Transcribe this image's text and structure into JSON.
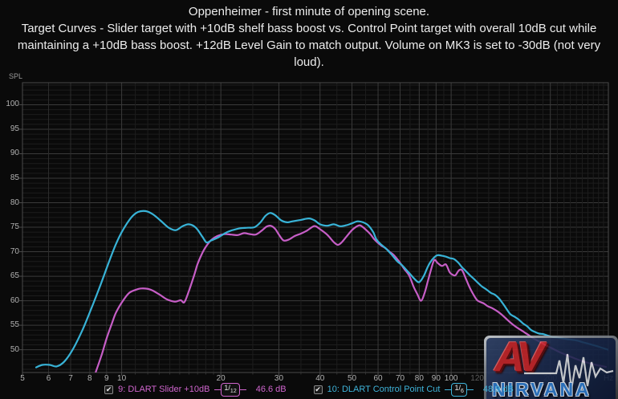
{
  "title": {
    "lines": [
      "Oppenheimer - first minute of opening scene.",
      "Target Curves - Slider target with +10dB shelf bass boost vs. Control Point target with overall 10dB cut while",
      "maintaining a +10dB bass boost. +12dB Level Gain to match output. Volume on MK3 is set to -30dB (not very",
      "loud)."
    ]
  },
  "axes": {
    "y_label": "SPL",
    "x_unit": "Hz",
    "y_ticks": [
      100,
      95,
      90,
      85,
      80,
      75,
      70,
      65,
      60,
      55,
      50
    ],
    "x_ticks": [
      5,
      6,
      7,
      8,
      9,
      10,
      20,
      30,
      40,
      50,
      60,
      70,
      80,
      90,
      100
    ],
    "x_ticks_dim": [
      120,
      200
    ]
  },
  "legend": [
    {
      "checked": true,
      "label": "9: DLART Slider +10dB",
      "smoothing": "1/12",
      "value": "46.6 dB",
      "color": "#cf65cd"
    },
    {
      "checked": true,
      "label": "10: DLART Control Point Cut",
      "smoothing": "1/6",
      "value": "48.9 dB",
      "color": "#3fb4da"
    }
  ],
  "watermark": {
    "av": "AV",
    "nirvana": "NIRVANA"
  },
  "colors": {
    "bg": "#0a0a0a",
    "grid_major": "#3a3a3a",
    "grid_medium": "#2c2c2c",
    "grid_minor": "#1d1d1d",
    "plot_border": "#4a4a4a",
    "tick_text": "#b2b2b2"
  },
  "chart_data": {
    "type": "line",
    "x_scale": "log",
    "xlabel": "Hz",
    "ylabel": "SPL (dB)",
    "x_range": [
      5,
      300
    ],
    "y_range": [
      45.35,
      104.5
    ],
    "grid": "on",
    "legend_position": "bottom",
    "x_major_gridlines": [
      10,
      20,
      30,
      40,
      50,
      60,
      70,
      80,
      90,
      100,
      200
    ],
    "x_medium_gridlines": [
      6,
      7,
      8,
      9
    ],
    "x_minor_gridlines": [
      11,
      12,
      13,
      14,
      15,
      16,
      17,
      18,
      19,
      25,
      35,
      45,
      55,
      65,
      75,
      85,
      95,
      110,
      120,
      130,
      140,
      150,
      160,
      170,
      180,
      190,
      210,
      220,
      230,
      240,
      250,
      260,
      270,
      280,
      290
    ],
    "y_major_step": 5,
    "y_minor_step": 1,
    "series": [
      {
        "name": "9: DLART Slider +10dB",
        "color": "#c75ec7",
        "points": [
          [
            8.35,
            45.5
          ],
          [
            8.7,
            49.0
          ],
          [
            9.0,
            52.3
          ],
          [
            9.3,
            55.0
          ],
          [
            9.6,
            57.5
          ],
          [
            10.0,
            59.6
          ],
          [
            10.5,
            61.5
          ],
          [
            11.0,
            62.2
          ],
          [
            11.5,
            62.5
          ],
          [
            12.2,
            62.3
          ],
          [
            13.0,
            61.3
          ],
          [
            13.7,
            60.3
          ],
          [
            14.5,
            59.8
          ],
          [
            15.1,
            60.1
          ],
          [
            15.5,
            59.7
          ],
          [
            16.0,
            62.0
          ],
          [
            16.6,
            65.2
          ],
          [
            17.0,
            67.5
          ],
          [
            17.5,
            69.5
          ],
          [
            18.0,
            71.0
          ],
          [
            18.7,
            72.4
          ],
          [
            19.5,
            73.2
          ],
          [
            20.5,
            73.6
          ],
          [
            21.5,
            73.5
          ],
          [
            22.5,
            73.4
          ],
          [
            23.5,
            73.8
          ],
          [
            24.5,
            73.6
          ],
          [
            25.5,
            73.5
          ],
          [
            26.5,
            74.2
          ],
          [
            27.5,
            75.1
          ],
          [
            28.3,
            75.3
          ],
          [
            29.2,
            74.7
          ],
          [
            30.0,
            73.5
          ],
          [
            31.0,
            72.3
          ],
          [
            32.2,
            72.5
          ],
          [
            33.5,
            73.2
          ],
          [
            35.0,
            73.7
          ],
          [
            36.5,
            74.3
          ],
          [
            38.0,
            75.1
          ],
          [
            38.8,
            75.2
          ],
          [
            40.0,
            74.6
          ],
          [
            42.0,
            73.5
          ],
          [
            44.0,
            72.0
          ],
          [
            45.3,
            71.4
          ],
          [
            46.5,
            71.9
          ],
          [
            48.0,
            73.0
          ],
          [
            50.0,
            74.4
          ],
          [
            51.5,
            75.1
          ],
          [
            52.8,
            75.4
          ],
          [
            54.0,
            75.0
          ],
          [
            55.5,
            74.3
          ],
          [
            57.0,
            73.5
          ],
          [
            58.5,
            72.5
          ],
          [
            60.0,
            71.8
          ],
          [
            61.5,
            71.2
          ],
          [
            63.0,
            70.8
          ],
          [
            65.0,
            70.0
          ],
          [
            67.0,
            69.3
          ],
          [
            69.7,
            67.9
          ],
          [
            72.0,
            66.5
          ],
          [
            74.5,
            65.2
          ],
          [
            77.0,
            62.8
          ],
          [
            79.0,
            61.3
          ],
          [
            81.0,
            60.0
          ],
          [
            83.0,
            61.5
          ],
          [
            85.0,
            64.0
          ],
          [
            87.0,
            66.5
          ],
          [
            88.9,
            68.3
          ],
          [
            91.0,
            67.7
          ],
          [
            93.8,
            67.1
          ],
          [
            96.4,
            67.4
          ],
          [
            99.0,
            65.8
          ],
          [
            101,
            65.3
          ],
          [
            103,
            65.2
          ],
          [
            105.6,
            66.2
          ],
          [
            108,
            66.2
          ],
          [
            111,
            64.4
          ],
          [
            114,
            62.6
          ],
          [
            117,
            61.2
          ],
          [
            120,
            60.1
          ],
          [
            123,
            59.7
          ],
          [
            126,
            59.4
          ],
          [
            129,
            58.9
          ],
          [
            133,
            58.5
          ],
          [
            137,
            58.0
          ],
          [
            141,
            57.4
          ],
          [
            146,
            56.5
          ],
          [
            151,
            55.6
          ],
          [
            157,
            54.7
          ],
          [
            163,
            54.0
          ],
          [
            170,
            53.2
          ],
          [
            178,
            52.3
          ],
          [
            186,
            51.6
          ],
          [
            195,
            50.8
          ],
          [
            205,
            50.1
          ],
          [
            215,
            49.4
          ],
          [
            228,
            48.7
          ],
          [
            242,
            48.0
          ],
          [
            258,
            47.4
          ],
          [
            275,
            46.9
          ],
          [
            295,
            46.5
          ]
        ]
      },
      {
        "name": "10: DLART Control Point Cut",
        "color": "#38b3d7",
        "points": [
          [
            5.5,
            46.4
          ],
          [
            5.75,
            46.9
          ],
          [
            6.05,
            46.9
          ],
          [
            6.35,
            46.6
          ],
          [
            6.7,
            47.6
          ],
          [
            7.1,
            50.0
          ],
          [
            7.6,
            54.0
          ],
          [
            8.1,
            58.5
          ],
          [
            8.6,
            63.0
          ],
          [
            9.1,
            67.5
          ],
          [
            9.6,
            71.5
          ],
          [
            10.1,
            74.5
          ],
          [
            10.7,
            77.0
          ],
          [
            11.2,
            78.1
          ],
          [
            11.8,
            78.3
          ],
          [
            12.4,
            77.7
          ],
          [
            13.1,
            76.4
          ],
          [
            13.9,
            74.9
          ],
          [
            14.6,
            74.4
          ],
          [
            15.3,
            75.2
          ],
          [
            16.0,
            75.6
          ],
          [
            16.8,
            74.9
          ],
          [
            17.6,
            73.0
          ],
          [
            18.1,
            71.9
          ],
          [
            18.7,
            72.3
          ],
          [
            19.6,
            72.9
          ],
          [
            20.9,
            74.0
          ],
          [
            22.5,
            74.7
          ],
          [
            24.0,
            74.9
          ],
          [
            25.3,
            75.0
          ],
          [
            26.3,
            75.9
          ],
          [
            27.3,
            77.3
          ],
          [
            28.2,
            77.9
          ],
          [
            29.2,
            77.5
          ],
          [
            30.5,
            76.4
          ],
          [
            31.8,
            76.0
          ],
          [
            33.0,
            76.2
          ],
          [
            35.0,
            76.5
          ],
          [
            37.0,
            76.8
          ],
          [
            38.5,
            76.4
          ],
          [
            40.0,
            75.6
          ],
          [
            42.0,
            75.3
          ],
          [
            44.0,
            75.6
          ],
          [
            46.0,
            75.2
          ],
          [
            48.0,
            75.4
          ],
          [
            50.0,
            75.8
          ],
          [
            52.0,
            76.2
          ],
          [
            54.0,
            76.0
          ],
          [
            56.0,
            75.4
          ],
          [
            58.0,
            74.0
          ],
          [
            59.2,
            72.6
          ],
          [
            61.0,
            71.6
          ],
          [
            63.5,
            70.6
          ],
          [
            66.0,
            69.4
          ],
          [
            68.5,
            68.1
          ],
          [
            71.0,
            67.2
          ],
          [
            74.5,
            65.7
          ],
          [
            77.5,
            64.4
          ],
          [
            80.0,
            63.8
          ],
          [
            82.5,
            65.0
          ],
          [
            84.5,
            66.6
          ],
          [
            86.5,
            67.9
          ],
          [
            89.0,
            68.9
          ],
          [
            91.0,
            69.3
          ],
          [
            93.5,
            69.2
          ],
          [
            96.4,
            69.0
          ],
          [
            99.0,
            68.7
          ],
          [
            102,
            68.5
          ],
          [
            105,
            67.8
          ],
          [
            108,
            66.8
          ],
          [
            111,
            66.0
          ],
          [
            114,
            65.2
          ],
          [
            117,
            64.5
          ],
          [
            120,
            63.8
          ],
          [
            124,
            62.9
          ],
          [
            128,
            62.3
          ],
          [
            132,
            61.6
          ],
          [
            136,
            61.2
          ],
          [
            140,
            60.4
          ],
          [
            145,
            59.0
          ],
          [
            151,
            57.3
          ],
          [
            156,
            56.7
          ],
          [
            160,
            56.2
          ],
          [
            165,
            55.4
          ],
          [
            170,
            54.8
          ],
          [
            175,
            54.0
          ],
          [
            180,
            53.6
          ],
          [
            185,
            53.3
          ],
          [
            190,
            53.2
          ],
          [
            196,
            52.9
          ],
          [
            203,
            52.6
          ],
          [
            210,
            52.5
          ],
          [
            218,
            52.3
          ],
          [
            228,
            52.1
          ],
          [
            240,
            51.9
          ],
          [
            252,
            51.5
          ],
          [
            265,
            51.1
          ],
          [
            278,
            50.7
          ],
          [
            290,
            50.3
          ],
          [
            300,
            50.0
          ]
        ]
      }
    ]
  }
}
